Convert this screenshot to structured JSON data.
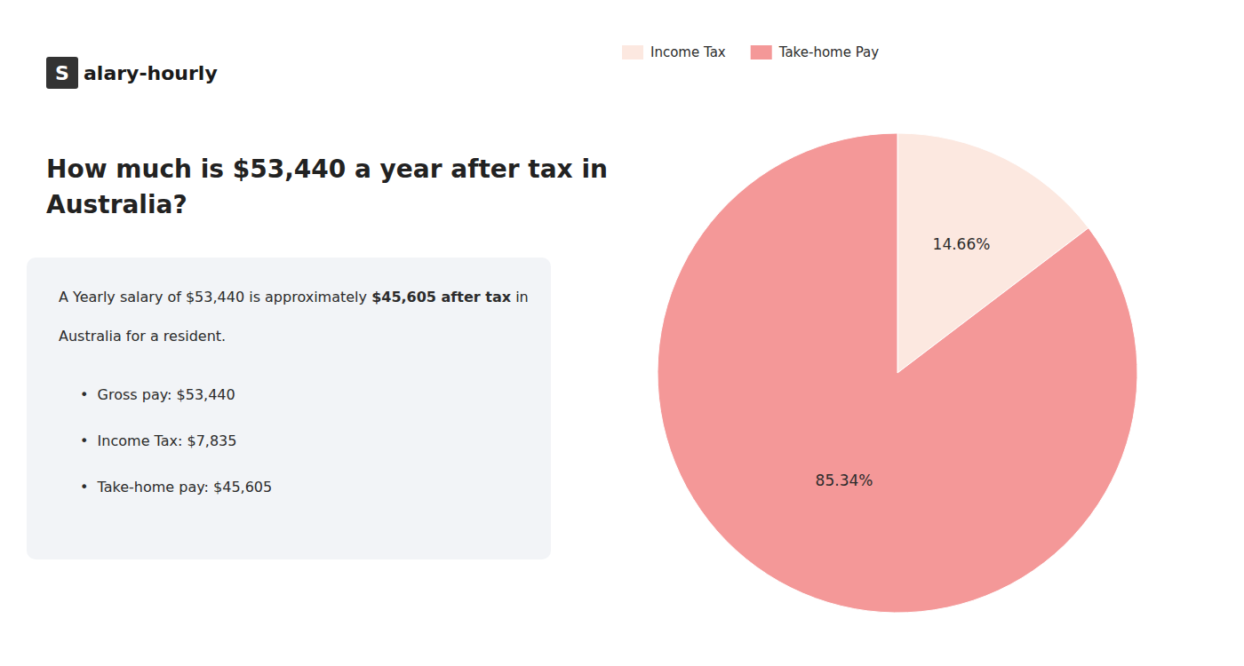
{
  "chart_data": {
    "type": "pie",
    "title": [
      "How much is $53,440 a year after tax in",
      "Australia?"
    ],
    "annotations": [
      "S",
      "alary-hourly",
      "A Yearly salary of $53,440 is approximately ",
      "$45,605 after tax",
      " in",
      "Australia for a resident.",
      "•  Gross pay: $53,440",
      "•  Income Tax: $7,835",
      "•  Take-home pay: $45,605"
    ],
    "categories": [
      "Income Tax",
      "Take-home Pay"
    ],
    "values": [
      14.66,
      85.34
    ],
    "value_labels": [
      "14.66%",
      "85.34%"
    ],
    "colors": [
      "#fce8e0",
      "#f49898"
    ],
    "data_labels": true,
    "legend": "top"
  }
}
